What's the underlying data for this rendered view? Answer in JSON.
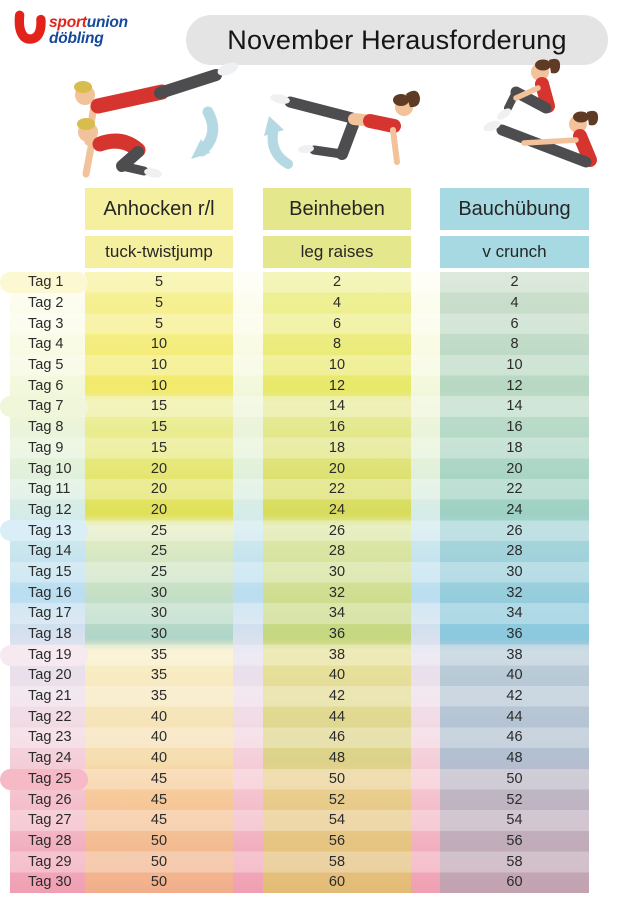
{
  "logo": {
    "u_mark": "U",
    "brand_red": "sport",
    "brand_blue": "union",
    "brand_line2": "döbling",
    "color_red": "#e2231a",
    "color_blue": "#15499b"
  },
  "title": "November Herausforderung",
  "illustrations": [
    {
      "name": "tuck-twistjump-demo",
      "description": "plank to tuck figures with down arrow"
    },
    {
      "name": "leg-raises-demo",
      "description": "quadruped leg raise figure with up arrow"
    },
    {
      "name": "v-crunch-demo",
      "description": "two v-crunch figures"
    }
  ],
  "accent_colors": {
    "arrow_blue": "#b5d9e2",
    "title_pill_gray": "#e4e4e4"
  },
  "chart_data": {
    "type": "table",
    "title": "November Herausforderung",
    "row_header": "Tag",
    "columns": [
      {
        "exercise_de": "Anhocken r/l",
        "exercise_en": "tuck-twistjump",
        "header_color": "#f5efa0"
      },
      {
        "exercise_de": "Beinheben",
        "exercise_en": "leg raises",
        "header_color": "#e5e78c"
      },
      {
        "exercise_de": "Bauchübung",
        "exercise_en": "v crunch",
        "header_color": "#a7d9e2"
      }
    ],
    "rows": [
      {
        "label": "Tag 1",
        "values": [
          5,
          2,
          2
        ]
      },
      {
        "label": "Tag 2",
        "values": [
          5,
          4,
          4
        ]
      },
      {
        "label": "Tag 3",
        "values": [
          5,
          6,
          6
        ]
      },
      {
        "label": "Tag 4",
        "values": [
          10,
          8,
          8
        ]
      },
      {
        "label": "Tag 5",
        "values": [
          10,
          10,
          10
        ]
      },
      {
        "label": "Tag 6",
        "values": [
          10,
          12,
          12
        ]
      },
      {
        "label": "Tag 7",
        "values": [
          15,
          14,
          14
        ]
      },
      {
        "label": "Tag 8",
        "values": [
          15,
          16,
          16
        ]
      },
      {
        "label": "Tag 9",
        "values": [
          15,
          18,
          18
        ]
      },
      {
        "label": "Tag 10",
        "values": [
          20,
          20,
          20
        ]
      },
      {
        "label": "Tag 11",
        "values": [
          20,
          22,
          22
        ]
      },
      {
        "label": "Tag 12",
        "values": [
          20,
          24,
          24
        ]
      },
      {
        "label": "Tag 13",
        "values": [
          25,
          26,
          26
        ]
      },
      {
        "label": "Tag 14",
        "values": [
          25,
          28,
          28
        ]
      },
      {
        "label": "Tag 15",
        "values": [
          25,
          30,
          30
        ]
      },
      {
        "label": "Tag 16",
        "values": [
          30,
          32,
          32
        ]
      },
      {
        "label": "Tag 17",
        "values": [
          30,
          34,
          34
        ]
      },
      {
        "label": "Tag 18",
        "values": [
          30,
          36,
          36
        ]
      },
      {
        "label": "Tag 19",
        "values": [
          35,
          38,
          38
        ]
      },
      {
        "label": "Tag 20",
        "values": [
          35,
          40,
          40
        ]
      },
      {
        "label": "Tag 21",
        "values": [
          35,
          42,
          42
        ]
      },
      {
        "label": "Tag 22",
        "values": [
          40,
          44,
          44
        ]
      },
      {
        "label": "Tag 23",
        "values": [
          40,
          46,
          46
        ]
      },
      {
        "label": "Tag 24",
        "values": [
          40,
          48,
          48
        ]
      },
      {
        "label": "Tag 25",
        "values": [
          45,
          50,
          50
        ]
      },
      {
        "label": "Tag 26",
        "values": [
          45,
          52,
          52
        ]
      },
      {
        "label": "Tag 27",
        "values": [
          45,
          54,
          54
        ]
      },
      {
        "label": "Tag 28",
        "values": [
          50,
          56,
          56
        ]
      },
      {
        "label": "Tag 29",
        "values": [
          50,
          58,
          58
        ]
      },
      {
        "label": "Tag 30",
        "values": [
          50,
          60,
          60
        ]
      }
    ]
  }
}
